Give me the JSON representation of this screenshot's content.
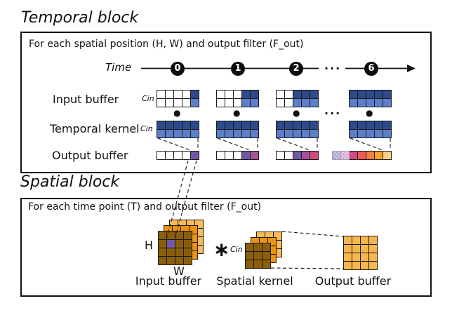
{
  "temporal": {
    "title": "Temporal block",
    "loop_text": "For each spatial position (H, W) and output filter (F_out)",
    "time_label": "Time",
    "time_ticks": [
      "0",
      "1",
      "2",
      "6"
    ],
    "ellipsis": "···",
    "dot_symbol": "●",
    "row_labels": {
      "input": "Input buffer",
      "kernel": "Temporal kernel",
      "output": "Output buffer"
    },
    "cin_label": "Cin",
    "kernel_rows": [
      "navy",
      "blue"
    ],
    "steps": [
      {
        "time": "0",
        "input_filled_cols": 1,
        "output": [
          "white",
          "white",
          "white",
          "white",
          "t0"
        ]
      },
      {
        "time": "1",
        "input_filled_cols": 2,
        "output": [
          "white",
          "white",
          "white",
          "t0",
          "t1"
        ]
      },
      {
        "time": "2",
        "input_filled_cols": 3,
        "output": [
          "white",
          "white",
          "t0",
          "t1",
          "t2"
        ]
      },
      {
        "time": "6",
        "input_filled_cols": 5,
        "shifted_out": [
          "t0_faded",
          "t1_faded"
        ],
        "output": [
          "t2",
          "t3",
          "t4",
          "t5",
          "t6"
        ]
      }
    ]
  },
  "spatial": {
    "title": "Spatial block",
    "loop_text": "For each time point (T) and output filter (F_out)",
    "h_label": "H",
    "w_label": "W",
    "conv_symbol": "∗",
    "cin_label": "Cin",
    "captions": {
      "input": "Input buffer",
      "kernel": "Spatial kernel",
      "output": "Output buffer"
    },
    "input_stack": {
      "rows": 4,
      "cols": 4,
      "layer_colors": [
        "orange_light",
        "orange_mid",
        "brown"
      ],
      "highlight_cell": {
        "row": 1,
        "col": 1,
        "color": "t0"
      }
    },
    "kernel_stack": {
      "rows": 3,
      "cols": 3,
      "layer_colors": [
        "orange_light",
        "orange_mid",
        "brown"
      ]
    },
    "output_grid": {
      "rows": 4,
      "cols": 4,
      "color": "amber"
    }
  },
  "palette": {
    "white": "#ffffff",
    "navy": "#2d4a89",
    "blue": "#5c7fc9",
    "t0": "#7159a7",
    "t1": "#a8539b",
    "t2": "#d14b7e",
    "t3": "#f15b57",
    "t4": "#f57f41",
    "t5": "#f9a228",
    "t6": "#fbd289",
    "t0_faded": "#a9a0ce",
    "t1_faded": "#d9a5c9",
    "brown": "#8b5e09",
    "orange_mid": "#ee9211",
    "orange_light": "#fbbc55",
    "amber": "#f7b64c",
    "ink": "#111111"
  }
}
